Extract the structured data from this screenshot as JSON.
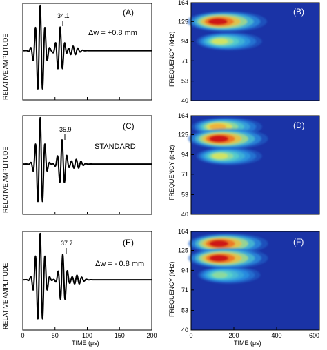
{
  "colors": {
    "map_background": "#1a33a6",
    "trace": "#000000"
  },
  "wave_axes": {
    "ylabel": "RELATIVE AMPLITUDE",
    "xlabel": "TIME (μs)",
    "xticks": [
      "0",
      "50",
      "100",
      "150",
      "200"
    ]
  },
  "spec_axes": {
    "ylabel": "FREQUENCY (kHz)",
    "xlabel": "TIME (μs)",
    "yticks": [
      "40",
      "53",
      "71",
      "94",
      "125",
      "164"
    ],
    "xticks": [
      "0",
      "200",
      "400",
      "600"
    ]
  },
  "panels": {
    "A": {
      "label": "(A)",
      "peak": "34.1",
      "condition": "Δw = +0.8 mm"
    },
    "B": {
      "label": "(B)"
    },
    "C": {
      "label": "(C)",
      "peak": "35.9",
      "condition": "STANDARD"
    },
    "D": {
      "label": "(D)"
    },
    "E": {
      "label": "(E)",
      "peak": "37.7",
      "condition": "Δw = - 0.8 mm"
    },
    "F": {
      "label": "(F)"
    }
  },
  "chart_data": [
    {
      "type": "line",
      "panel": "A",
      "xlabel": "",
      "ylabel": "RELATIVE AMPLITUDE",
      "xlim": [
        0,
        200
      ],
      "ylim": [
        -1,
        1
      ],
      "annotation": {
        "x": 62,
        "text": "34.1"
      },
      "packets": [
        {
          "center": 27,
          "amp": 1.0,
          "width": 9,
          "period": 7.5
        },
        {
          "center": 58,
          "amp": 0.52,
          "width": 7,
          "period": 7.5
        },
        {
          "center": 78,
          "amp": 0.1,
          "width": 10,
          "period": 7.5
        }
      ]
    },
    {
      "type": "heatmap",
      "panel": "B",
      "xlabel": "",
      "ylabel": "FREQUENCY (kHz)",
      "xlim": [
        0,
        600
      ],
      "yticks": [
        40,
        53,
        71,
        94,
        125,
        164
      ],
      "blobs": [
        {
          "t": 125,
          "f": 125,
          "intensity": 1.0
        },
        {
          "t": 135,
          "f": 94,
          "intensity": 0.55
        }
      ]
    },
    {
      "type": "line",
      "panel": "C",
      "xlabel": "",
      "ylabel": "RELATIVE AMPLITUDE",
      "xlim": [
        0,
        200
      ],
      "ylim": [
        -1,
        1
      ],
      "annotation": {
        "x": 66,
        "text": "35.9"
      },
      "packets": [
        {
          "center": 27,
          "amp": 1.0,
          "width": 8,
          "period": 7.5
        },
        {
          "center": 61,
          "amp": 0.52,
          "width": 7,
          "period": 7.5
        },
        {
          "center": 83,
          "amp": 0.1,
          "width": 10,
          "period": 7.5
        }
      ]
    },
    {
      "type": "heatmap",
      "panel": "D",
      "xlabel": "",
      "ylabel": "FREQUENCY (kHz)",
      "xlim": [
        0,
        600
      ],
      "yticks": [
        40,
        53,
        71,
        94,
        125,
        164
      ],
      "blobs": [
        {
          "t": 125,
          "f": 140,
          "intensity": 0.7
        },
        {
          "t": 130,
          "f": 118,
          "intensity": 1.0
        },
        {
          "t": 135,
          "f": 92,
          "intensity": 0.55
        }
      ]
    },
    {
      "type": "line",
      "panel": "E",
      "xlabel": "TIME (μs)",
      "ylabel": "RELATIVE AMPLITUDE",
      "xlim": [
        0,
        200
      ],
      "ylim": [
        -1,
        1
      ],
      "xticks": [
        0,
        50,
        100,
        150,
        200
      ],
      "annotation": {
        "x": 68,
        "text": "37.7"
      },
      "packets": [
        {
          "center": 27,
          "amp": 1.0,
          "width": 9,
          "period": 7.5
        },
        {
          "center": 62,
          "amp": 0.55,
          "width": 7,
          "period": 7.5
        },
        {
          "center": 84,
          "amp": 0.1,
          "width": 10,
          "period": 7.5
        }
      ]
    },
    {
      "type": "heatmap",
      "panel": "F",
      "xlabel": "TIME (μs)",
      "ylabel": "FREQUENCY (kHz)",
      "xlim": [
        0,
        600
      ],
      "yticks": [
        40,
        53,
        71,
        94,
        125,
        164
      ],
      "xticks": [
        0,
        200,
        400,
        600
      ],
      "blobs": [
        {
          "t": 130,
          "f": 138,
          "intensity": 1.0
        },
        {
          "t": 130,
          "f": 112,
          "intensity": 1.0
        },
        {
          "t": 135,
          "f": 88,
          "intensity": 0.45
        }
      ]
    }
  ]
}
